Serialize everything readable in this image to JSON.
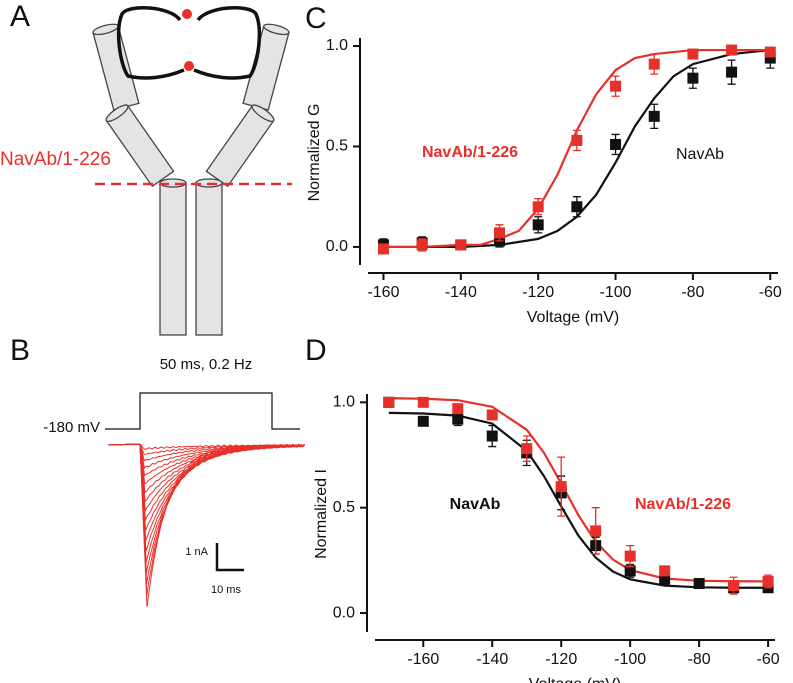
{
  "panels": {
    "labels": [
      "A",
      "B",
      "C",
      "D"
    ]
  },
  "diagram": {
    "cut_label": "NavAb/1-226"
  },
  "recording": {
    "stimulus": "50 ms, 0.2 Hz",
    "holding": "-180 mV",
    "scale_y": "1 nA",
    "scale_x": "10 ms"
  },
  "chart_data": [
    {
      "type": "scatter",
      "xlabel": "Voltage (mV)",
      "ylabel": "Normalized G",
      "xlim": [
        -164,
        -58
      ],
      "ylim": [
        -0.09,
        1.03
      ],
      "xticks": [
        -160,
        -140,
        -120,
        -100,
        -80,
        -60
      ],
      "yticks": [
        {
          "value": 0,
          "label": "0.0"
        },
        0.5,
        {
          "value": 1,
          "label": "1.0"
        }
      ],
      "series": [
        {
          "name": "NavAb",
          "color": "#111111",
          "x": [
            -160,
            -150,
            -140,
            -130,
            -120,
            -110,
            -100,
            -90,
            -80,
            -70,
            -60
          ],
          "values": [
            0.01,
            0.02,
            0.01,
            0.03,
            0.11,
            0.2,
            0.51,
            0.65,
            0.84,
            0.87,
            0.94
          ],
          "errors": [
            0.03,
            0.03,
            0.02,
            0.03,
            0.04,
            0.05,
            0.05,
            0.06,
            0.05,
            0.06,
            0.05
          ]
        },
        {
          "name": "NavAb/1-226",
          "color": "#e8302a",
          "x": [
            -160,
            -150,
            -140,
            -130,
            -120,
            -110,
            -100,
            -90,
            -80,
            -70,
            -60
          ],
          "values": [
            -0.01,
            0.01,
            0.01,
            0.07,
            0.2,
            0.53,
            0.8,
            0.91,
            0.96,
            0.98,
            0.97
          ],
          "errors": [
            0.02,
            0.03,
            0.02,
            0.04,
            0.04,
            0.05,
            0.05,
            0.05,
            0.02,
            0.02,
            0.02
          ]
        }
      ],
      "fits": [
        {
          "color": "#111111",
          "x": [
            -160,
            -150,
            -140,
            -130,
            -120,
            -115,
            -110,
            -105,
            -100,
            -95,
            -90,
            -85,
            -80,
            -70,
            -60
          ],
          "values": [
            0,
            0,
            0,
            0.01,
            0.04,
            0.08,
            0.15,
            0.26,
            0.42,
            0.6,
            0.74,
            0.85,
            0.91,
            0.96,
            0.98
          ]
        },
        {
          "color": "#e8302a",
          "x": [
            -160,
            -150,
            -140,
            -135,
            -130,
            -125,
            -120,
            -115,
            -110,
            -105,
            -100,
            -95,
            -90,
            -80,
            -70,
            -60
          ],
          "values": [
            0,
            0,
            0.01,
            0.01,
            0.04,
            0.08,
            0.19,
            0.36,
            0.58,
            0.76,
            0.88,
            0.94,
            0.96,
            0.98,
            0.98,
            0.98
          ]
        }
      ]
    },
    {
      "type": "scatter",
      "xlabel": "Voltage (mV)",
      "ylabel": "Normalized I",
      "xlim": [
        -174,
        -58
      ],
      "ylim": [
        -0.09,
        1.03
      ],
      "xticks": [
        -160,
        -140,
        -120,
        -100,
        -80,
        -60
      ],
      "yticks": [
        {
          "value": 0,
          "label": "0.0"
        },
        0.5,
        {
          "value": 1,
          "label": "1.0"
        }
      ],
      "series": [
        {
          "name": "NavAb",
          "color": "#111111",
          "x": [
            -170,
            -160,
            -150,
            -140,
            -130,
            -120,
            -110,
            -100,
            -90,
            -80,
            -70,
            -60
          ],
          "values": [
            1.0,
            0.91,
            0.92,
            0.84,
            0.76,
            0.57,
            0.32,
            0.2,
            0.16,
            0.14,
            0.12,
            0.12
          ],
          "errors": [
            0.01,
            0.02,
            0.03,
            0.05,
            0.06,
            0.08,
            0.04,
            0.03,
            0.02,
            0.01,
            0.02,
            0.02
          ]
        },
        {
          "name": "NavAb/1-226",
          "color": "#e8302a",
          "x": [
            -170,
            -160,
            -150,
            -140,
            -130,
            -120,
            -110,
            -100,
            -90,
            -80,
            -70,
            -60
          ],
          "values": [
            1.0,
            1.0,
            0.97,
            0.94,
            0.78,
            0.6,
            0.39,
            0.27,
            0.2,
            null,
            0.13,
            0.15
          ],
          "errors": [
            0.01,
            0.01,
            0.01,
            0.02,
            0.06,
            0.14,
            0.11,
            0.05,
            0.02,
            null,
            0.04,
            0.03
          ]
        }
      ],
      "fits": [
        {
          "color": "#111111",
          "x": [
            -170,
            -160,
            -150,
            -140,
            -130,
            -125,
            -120,
            -115,
            -110,
            -105,
            -100,
            -90,
            -80,
            -70,
            -60
          ],
          "values": [
            0.95,
            0.947,
            0.937,
            0.899,
            0.77,
            0.65,
            0.506,
            0.367,
            0.263,
            0.197,
            0.16,
            0.13,
            0.122,
            0.12,
            0.12
          ]
        },
        {
          "color": "#e8302a",
          "x": [
            -170,
            -160,
            -150,
            -140,
            -130,
            -125,
            -120,
            -115,
            -110,
            -105,
            -100,
            -90,
            -80,
            -70,
            -60
          ],
          "values": [
            1.02,
            1.017,
            1.01,
            0.979,
            0.87,
            0.76,
            0.615,
            0.464,
            0.338,
            0.254,
            0.204,
            0.164,
            0.153,
            0.151,
            0.15
          ]
        }
      ]
    }
  ]
}
